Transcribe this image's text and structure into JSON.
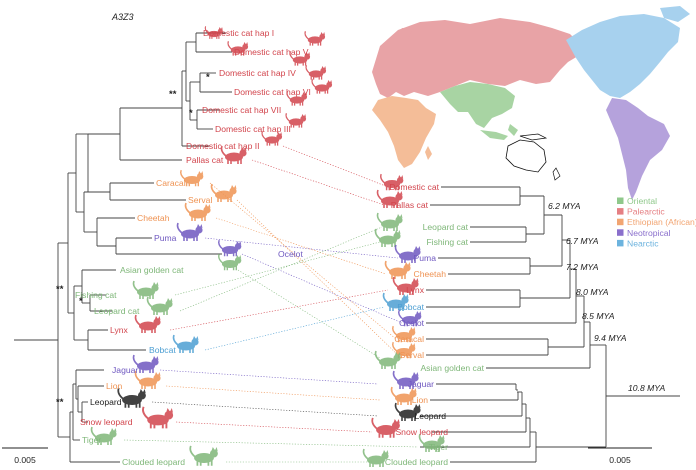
{
  "figure_title": "A3Z3",
  "colors": {
    "oriental": "#7fb779",
    "palearctic": "#d2454d",
    "ethiopian": "#ef9353",
    "neotropical": "#6f58c0",
    "nearctic": "#4d9fd3",
    "neutral": "#222222"
  },
  "legend": [
    {
      "label": "Oriental",
      "color": "#8fc88b"
    },
    {
      "label": "Palearctic",
      "color": "#e57f83"
    },
    {
      "label": "Ethiopian (African)",
      "color": "#f2a572"
    },
    {
      "label": "Neotropical",
      "color": "#8a6fcc"
    },
    {
      "label": "Nearctic",
      "color": "#6cb3de"
    }
  ],
  "left_tree_labels": [
    "Domestic cat hap I",
    "Domestic cat hap V",
    "Domestic cat hap IV",
    "Domestic cat hap VI",
    "Domestic cat hap VII",
    "Domestic cat hap III",
    "Domestic cat hap II",
    "Pallas cat",
    "Caracal",
    "Serval",
    "Cheetah",
    "Puma",
    "Ocelot",
    "Asian golden cat",
    "Fishing cat",
    "Leopard cat",
    "Lynx",
    "Bobcat",
    "Jaguar",
    "Lion",
    "Leopard",
    "Snow leopard",
    "Tiger",
    "Clouded leopard"
  ],
  "right_tree_labels": [
    "Domestic cat",
    "Pallas cat",
    "Leopard cat",
    "Fishing cat",
    "Puma",
    "Cheetah",
    "Lynx",
    "Bobcat",
    "Ocelot",
    "Caracal",
    "Serval",
    "Asian golden cat",
    "Jaguar",
    "Lion",
    "Leopard",
    "Snow leopard",
    "Tiger",
    "Clouded leopard"
  ],
  "support_marks": [
    "**",
    "*",
    "*",
    "**",
    "*",
    "**"
  ],
  "divergence_times": [
    "6.2 MYA",
    "6.7 MYA",
    "7.2 MYA",
    "8.0 MYA",
    "8.5 MYA",
    "9.4 MYA",
    "10.8 MYA"
  ],
  "scale_bars": [
    "0.005",
    "0.005"
  ],
  "map_regions": [
    "palearctic",
    "nearctic",
    "oriental",
    "ethiopian",
    "neotropical",
    "australasia"
  ]
}
